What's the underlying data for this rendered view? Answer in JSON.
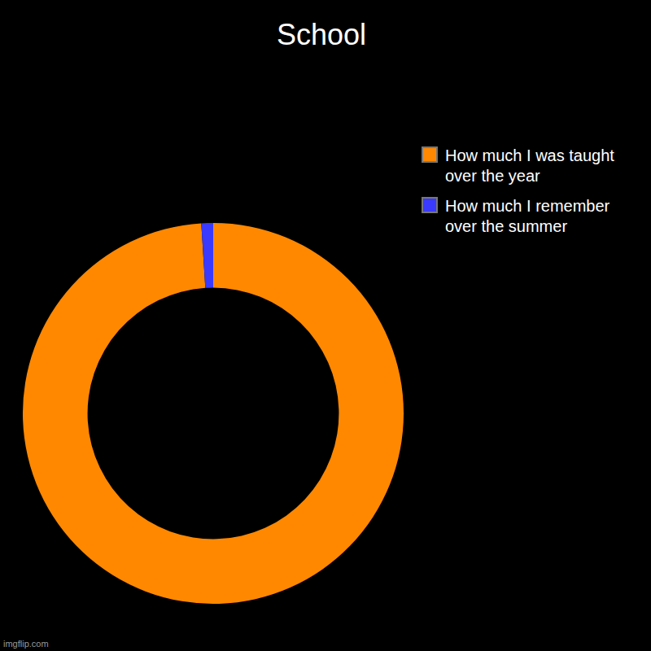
{
  "chart_data": {
    "type": "doughnut",
    "title": "School",
    "categories": [
      "How much I was taught over the year",
      "How much I remember over the summer"
    ],
    "values": [
      99,
      1
    ],
    "colors": [
      "#ff8800",
      "#3a3aff"
    ],
    "legend": "right",
    "annotations": [
      "imgflip.com"
    ]
  }
}
